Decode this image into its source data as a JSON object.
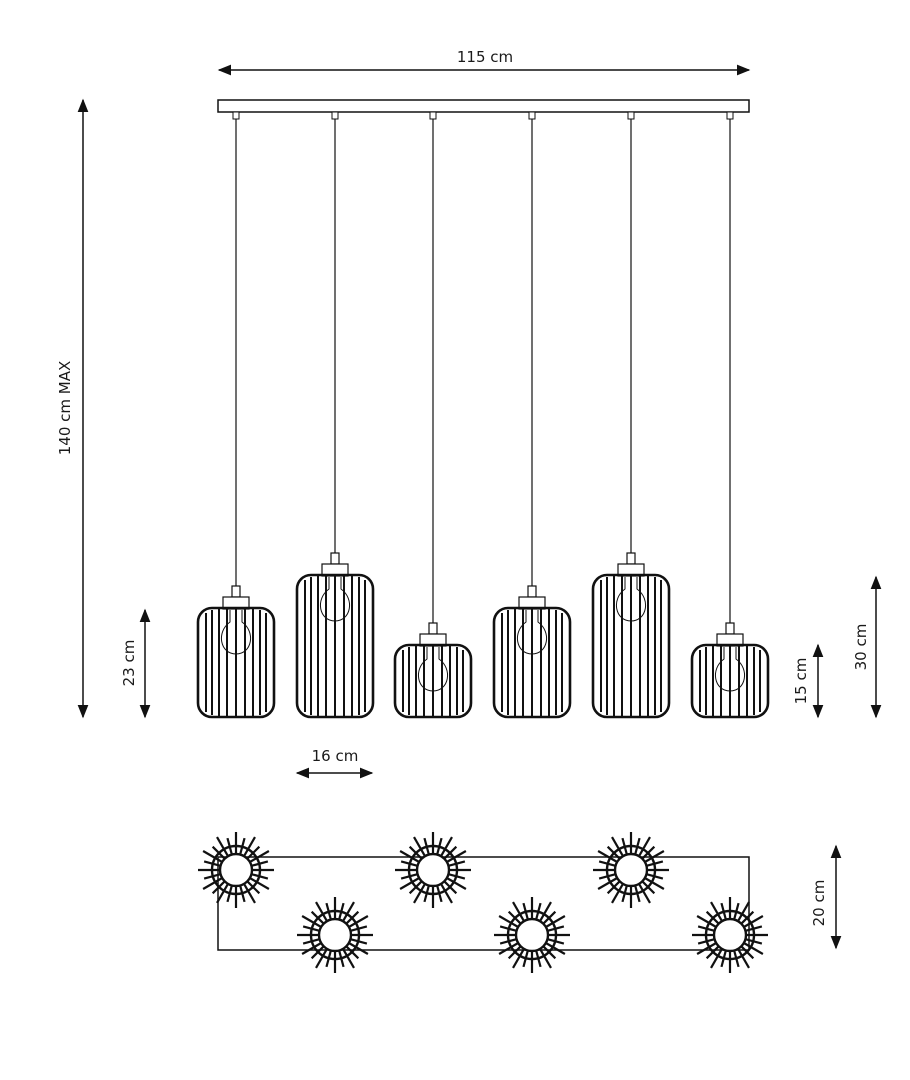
{
  "dimensions": {
    "width": "115 cm",
    "height_max": "140 cm MAX",
    "shade_medium_height": "23 cm",
    "shade_diameter": "16 cm",
    "shade_small_height": "15 cm",
    "shade_large_height": "30 cm",
    "depth": "20 cm"
  },
  "lamps": [
    "medium",
    "large",
    "small",
    "medium",
    "large",
    "small"
  ],
  "colors": {
    "line": "#111111",
    "background": "#ffffff"
  }
}
